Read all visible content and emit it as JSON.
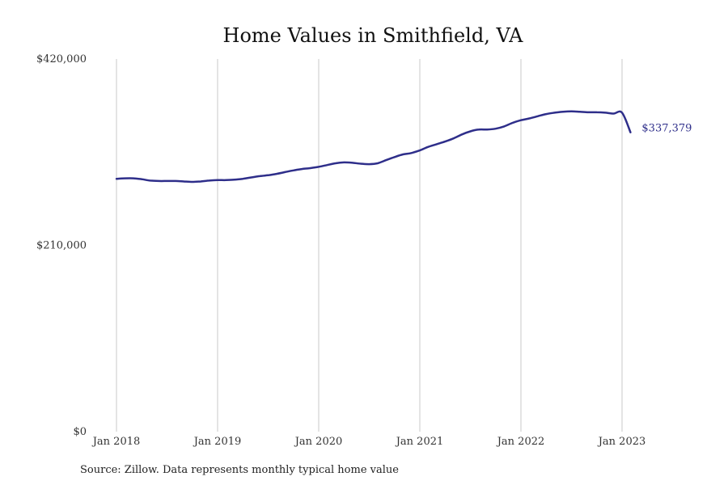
{
  "chart_data": {
    "type": "line",
    "title": "Home Values in Smithfield, VA",
    "source": "Source: Zillow. Data represents monthly typical home value",
    "xlabel": "",
    "ylabel": "",
    "x_ticks": [
      "Jan 2018",
      "Jan 2019",
      "Jan 2020",
      "Jan 2021",
      "Jan 2022",
      "Jan 2023"
    ],
    "y_ticks": [
      "$0",
      "$210,000",
      "$420,000"
    ],
    "ylim": [
      0,
      420000
    ],
    "xlim": [
      "2018-01",
      "2023-02"
    ],
    "grid": "vertical",
    "line_color": "#2e2e8a",
    "end_label": "$337,379",
    "series": [
      {
        "x": [
          "2018-01",
          "2018-02",
          "2018-03",
          "2018-04",
          "2018-05",
          "2018-06",
          "2018-07",
          "2018-08",
          "2018-09",
          "2018-10",
          "2018-11",
          "2018-12",
          "2019-01",
          "2019-02",
          "2019-03",
          "2019-04",
          "2019-05",
          "2019-06",
          "2019-07",
          "2019-08",
          "2019-09",
          "2019-10",
          "2019-11",
          "2019-12",
          "2020-01",
          "2020-02",
          "2020-03",
          "2020-04",
          "2020-05",
          "2020-06",
          "2020-07",
          "2020-08",
          "2020-09",
          "2020-10",
          "2020-11",
          "2020-12",
          "2021-01",
          "2021-02",
          "2021-03",
          "2021-04",
          "2021-05",
          "2021-06",
          "2021-07",
          "2021-08",
          "2021-09",
          "2021-10",
          "2021-11",
          "2021-12",
          "2022-01",
          "2022-02",
          "2022-03",
          "2022-04",
          "2022-05",
          "2022-06",
          "2022-07",
          "2022-08",
          "2022-09",
          "2022-10",
          "2022-11",
          "2022-12",
          "2023-01",
          "2023-02"
        ],
        "values": [
          285000,
          285500,
          285500,
          284500,
          283000,
          282500,
          282500,
          282500,
          282000,
          281500,
          282000,
          283000,
          283500,
          283500,
          284000,
          285000,
          286500,
          288000,
          289000,
          290500,
          292500,
          294500,
          296000,
          297000,
          298500,
          300500,
          302500,
          303500,
          303000,
          302000,
          301500,
          302500,
          306000,
          309500,
          312500,
          314000,
          317000,
          321000,
          324000,
          327000,
          330500,
          335000,
          338500,
          340500,
          340500,
          341500,
          344000,
          348000,
          351000,
          353000,
          355500,
          358000,
          359500,
          360500,
          361000,
          360500,
          360000,
          360000,
          359500,
          358500,
          359500,
          337379
        ]
      }
    ]
  }
}
